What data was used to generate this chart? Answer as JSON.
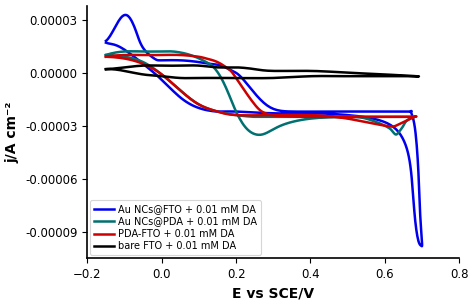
{
  "title": "",
  "xlabel": "E vs SCE/V",
  "ylabel": "j/A cm⁻²",
  "xlim": [
    -0.2,
    0.8
  ],
  "ylim": [
    -0.000105,
    3.8e-05
  ],
  "yticks": [
    -9e-05,
    -6e-05,
    -3e-05,
    0.0,
    3e-05
  ],
  "xticks": [
    -0.2,
    0.0,
    0.2,
    0.4,
    0.6,
    0.8
  ],
  "colors": {
    "bare_FTO": "#000000",
    "PDA_FTO": "#cc0000",
    "Au_FTO": "#0000ee",
    "Au_PDA": "#007070"
  },
  "linewidth": 1.8,
  "legend": [
    "bare FTO + 0.01 mM DA",
    "PDA-FTO + 0.01 mM DA",
    "Au NCs@FTO + 0.01 mM DA",
    "Au NCs@PDA + 0.01 mM DA"
  ]
}
